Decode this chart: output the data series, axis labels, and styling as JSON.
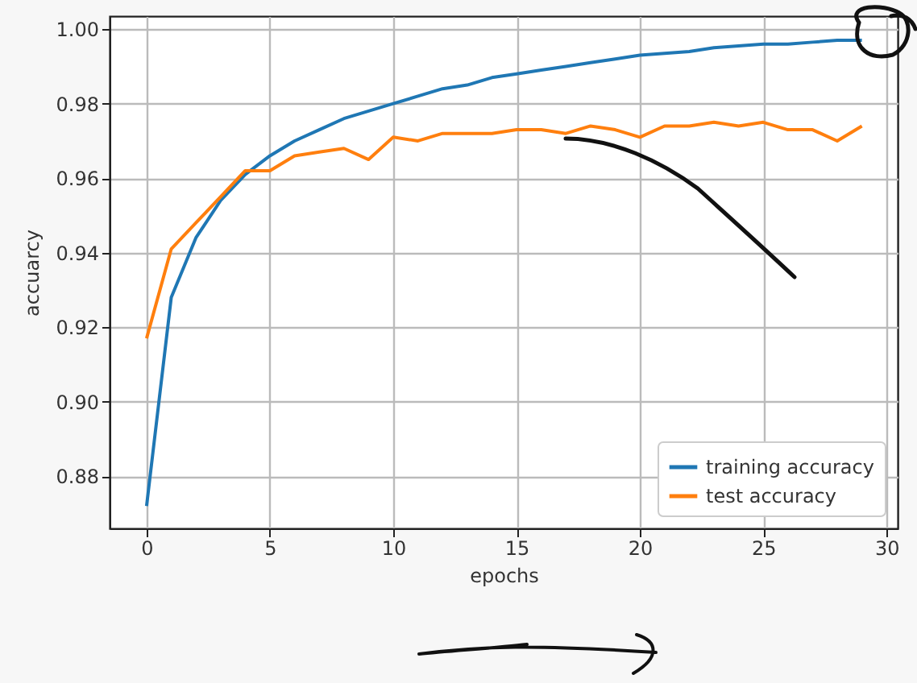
{
  "chart_data": {
    "type": "line",
    "xlabel": "epochs",
    "ylabel": "accuarcy",
    "x": [
      0,
      1,
      2,
      3,
      4,
      5,
      6,
      7,
      8,
      9,
      10,
      11,
      12,
      13,
      14,
      15,
      16,
      17,
      18,
      19,
      20,
      21,
      22,
      23,
      24,
      25,
      26,
      27,
      28,
      29
    ],
    "series": [
      {
        "name": "training accuracy",
        "color": "#1f77b4",
        "values": [
          0.872,
          0.928,
          0.944,
          0.954,
          0.961,
          0.966,
          0.97,
          0.973,
          0.976,
          0.978,
          0.98,
          0.982,
          0.984,
          0.985,
          0.987,
          0.988,
          0.989,
          0.99,
          0.991,
          0.992,
          0.993,
          0.9935,
          0.994,
          0.995,
          0.9955,
          0.996,
          0.996,
          0.9965,
          0.997,
          0.997
        ]
      },
      {
        "name": "test accuracy",
        "color": "#ff7f0e",
        "values": [
          0.917,
          0.941,
          0.948,
          0.955,
          0.962,
          0.962,
          0.966,
          0.967,
          0.968,
          0.965,
          0.971,
          0.97,
          0.972,
          0.972,
          0.972,
          0.973,
          0.973,
          0.972,
          0.974,
          0.973,
          0.971,
          0.974,
          0.974,
          0.975,
          0.974,
          0.975,
          0.973,
          0.973,
          0.97,
          0.974
        ]
      }
    ],
    "xlim": [
      -1.5,
      30.45
    ],
    "ylim": [
      0.866,
      1.0035
    ],
    "xticks": [
      0,
      5,
      10,
      15,
      20,
      25,
      30
    ],
    "yticks": [
      {
        "value": 0.88,
        "label": "0.88"
      },
      {
        "value": 0.9,
        "label": "0.90"
      },
      {
        "value": 0.92,
        "label": "0.92"
      },
      {
        "value": 0.94,
        "label": "0.94"
      },
      {
        "value": 0.96,
        "label": "0.96"
      },
      {
        "value": 0.98,
        "label": "0.98"
      },
      {
        "value": 1.0,
        "label": "1.00"
      }
    ],
    "grid": true,
    "legend": "bottom right"
  }
}
